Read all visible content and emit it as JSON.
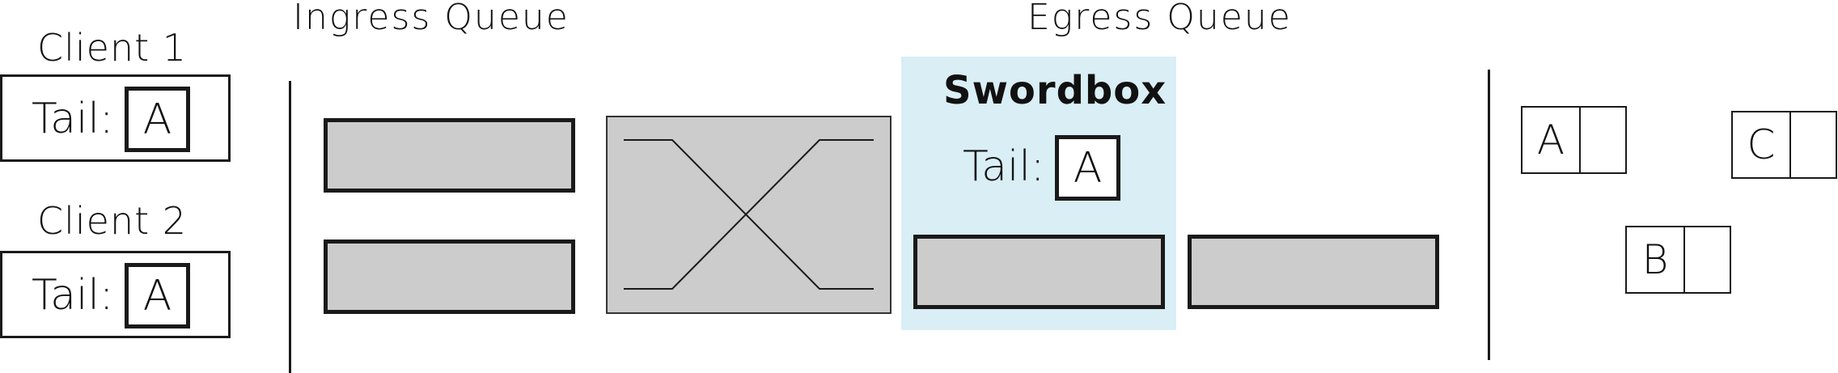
{
  "headings": {
    "ingress": "Ingress Queue",
    "egress": "Egress Queue"
  },
  "clients": [
    {
      "label": "Client 1",
      "tail_label": "Tail:",
      "tail_value": "A"
    },
    {
      "label": "Client 2",
      "tail_label": "Tail:",
      "tail_value": "A"
    }
  ],
  "swordbox": {
    "title": "Swordbox",
    "tail_label": "Tail:",
    "tail_value": "A",
    "panel_color": "#d9eef5"
  },
  "cells": [
    {
      "key": "A"
    },
    {
      "key": "B"
    },
    {
      "key": "C"
    }
  ],
  "colors": {
    "slot_fill": "#cccccc",
    "stroke": "#1a1a1a"
  }
}
